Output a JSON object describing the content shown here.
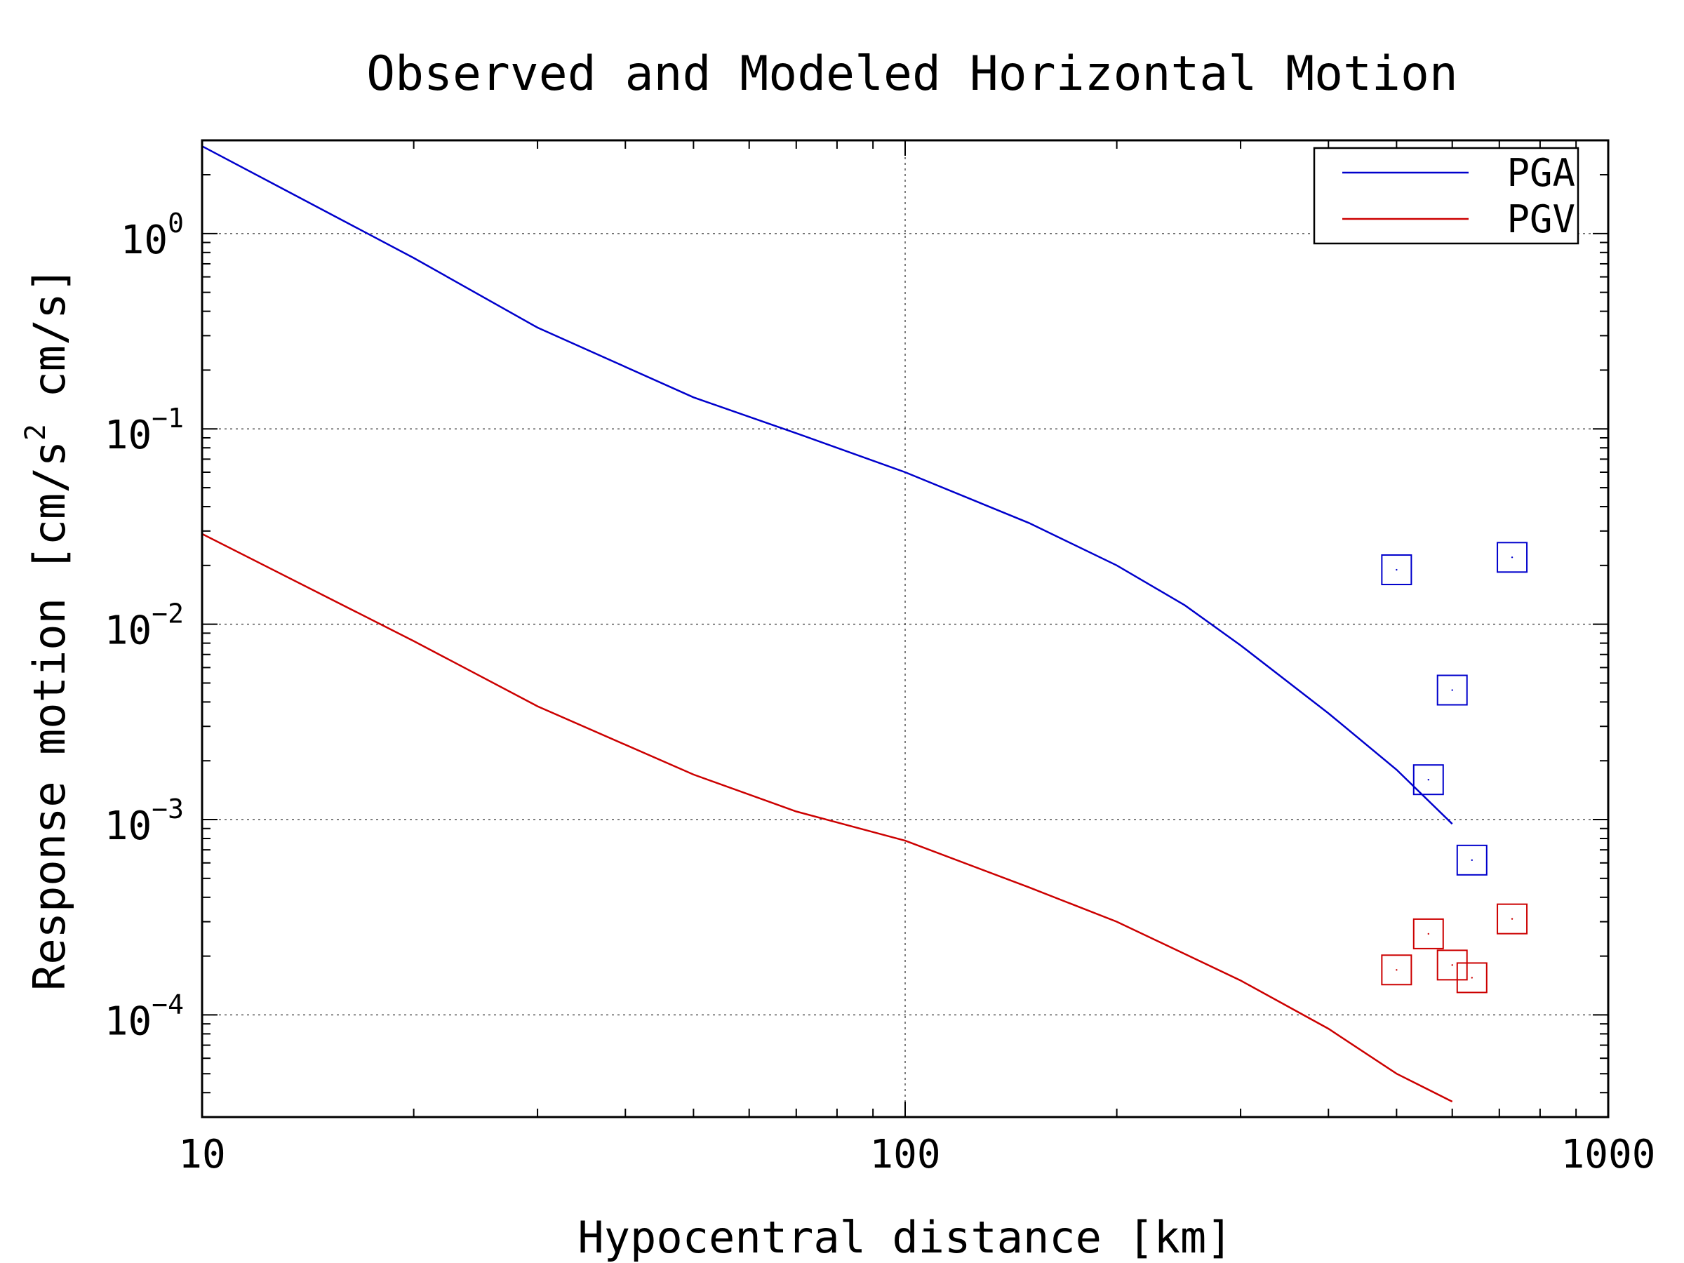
{
  "chart_data": {
    "type": "line",
    "title": "Observed and Modeled Horizontal Motion",
    "xlabel": "Hypocentral distance [km]",
    "ylabel": "Response motion [cm/s² cm/s]",
    "ylabel_parts": {
      "pre": "Response motion [cm/s",
      "sup": "2",
      "post": " cm/s]"
    },
    "xscale": "log",
    "yscale": "log",
    "xlim": [
      10,
      1000
    ],
    "ylim": [
      3e-05,
      3.0
    ],
    "x_ticks": [
      10,
      100,
      1000
    ],
    "x_tick_labels": [
      "10",
      "100",
      "1000"
    ],
    "y_ticks": [
      {
        "value": 1,
        "base": "10",
        "exp": "0"
      },
      {
        "value": 0.1,
        "base": "10",
        "exp": "−1"
      },
      {
        "value": 0.01,
        "base": "10",
        "exp": "−2"
      },
      {
        "value": 0.001,
        "base": "10",
        "exp": "−3"
      },
      {
        "value": 0.0001,
        "base": "10",
        "exp": "−4"
      }
    ],
    "grid": true,
    "legend_position": "top-right",
    "series": [
      {
        "name": "PGA",
        "color": "#0000cc",
        "style": "line",
        "x": [
          10,
          20,
          30,
          50,
          70,
          100,
          150,
          200,
          250,
          300,
          400,
          500,
          600
        ],
        "y": [
          2.8,
          0.75,
          0.33,
          0.145,
          0.095,
          0.06,
          0.033,
          0.02,
          0.0125,
          0.0078,
          0.0035,
          0.0018,
          0.00095
        ]
      },
      {
        "name": "PGV",
        "color": "#cc0000",
        "style": "line",
        "x": [
          10,
          20,
          30,
          50,
          70,
          100,
          150,
          200,
          250,
          300,
          400,
          500,
          600
        ],
        "y": [
          0.029,
          0.0082,
          0.0038,
          0.0017,
          0.0011,
          0.00078,
          0.00045,
          0.0003,
          0.000205,
          0.00015,
          8.5e-05,
          5e-05,
          3.6e-05
        ]
      }
    ],
    "observed": [
      {
        "series": "PGA",
        "color": "#0000cc",
        "marker": "square",
        "x": [
          500,
          555,
          600,
          640,
          730
        ],
        "y": [
          0.019,
          0.0016,
          0.0046,
          0.00062,
          0.022
        ]
      },
      {
        "series": "PGV",
        "color": "#cc0000",
        "marker": "square",
        "x": [
          500,
          555,
          600,
          640,
          730
        ],
        "y": [
          0.00017,
          0.00026,
          0.00018,
          0.000155,
          0.00031
        ]
      }
    ]
  }
}
